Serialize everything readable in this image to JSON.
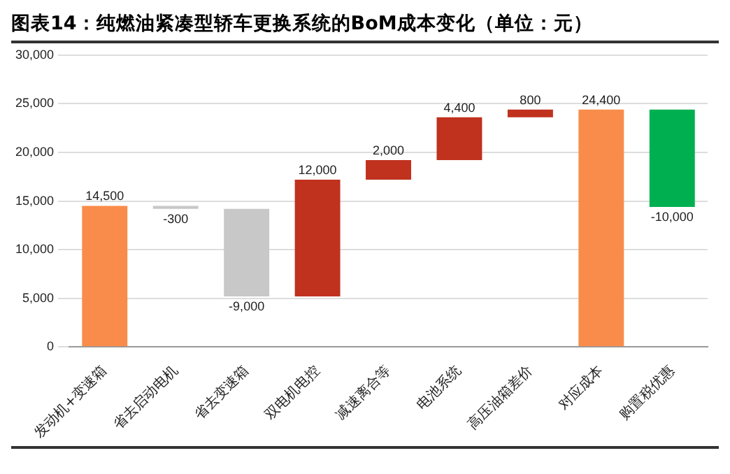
{
  "chart_data": {
    "type": "bar",
    "title": "图表14：纯燃油紧凑型轿车更换系统的BoM成本变化（单位：元）",
    "categories": [
      "发动机+变速箱",
      "省去启动电机",
      "省去变速箱",
      "双电机电控",
      "减速离合等",
      "电池系统",
      "高压油箱差价",
      "对应成本",
      "购置税优惠"
    ],
    "values": [
      14500,
      -300,
      -9000,
      12000,
      2000,
      4400,
      800,
      24400,
      -10000
    ],
    "base": [
      0,
      14500,
      14200,
      5200,
      17200,
      19200,
      23600,
      0,
      24400
    ],
    "colors": [
      "#f98c4a",
      "#c8c8c8",
      "#c8c8c8",
      "#c0311e",
      "#c0311e",
      "#c0311e",
      "#c0311e",
      "#f98c4a",
      "#00b050"
    ],
    "value_labels": [
      "14,500",
      "-300",
      "-9,000",
      "12,000",
      "2,000",
      "4,400",
      "800",
      "24,400",
      "-10,000"
    ],
    "ylim": [
      0,
      30000
    ],
    "yticks": [
      {
        "value": 0,
        "label": "0"
      },
      {
        "value": 5000,
        "label": "5,000"
      },
      {
        "value": 10000,
        "label": "10,000"
      },
      {
        "value": 15000,
        "label": "15,000"
      },
      {
        "value": 20000,
        "label": "20,000"
      },
      {
        "value": 25000,
        "label": "25,000"
      },
      {
        "value": 30000,
        "label": "30,000"
      }
    ],
    "grid": "y",
    "legend": false
  }
}
